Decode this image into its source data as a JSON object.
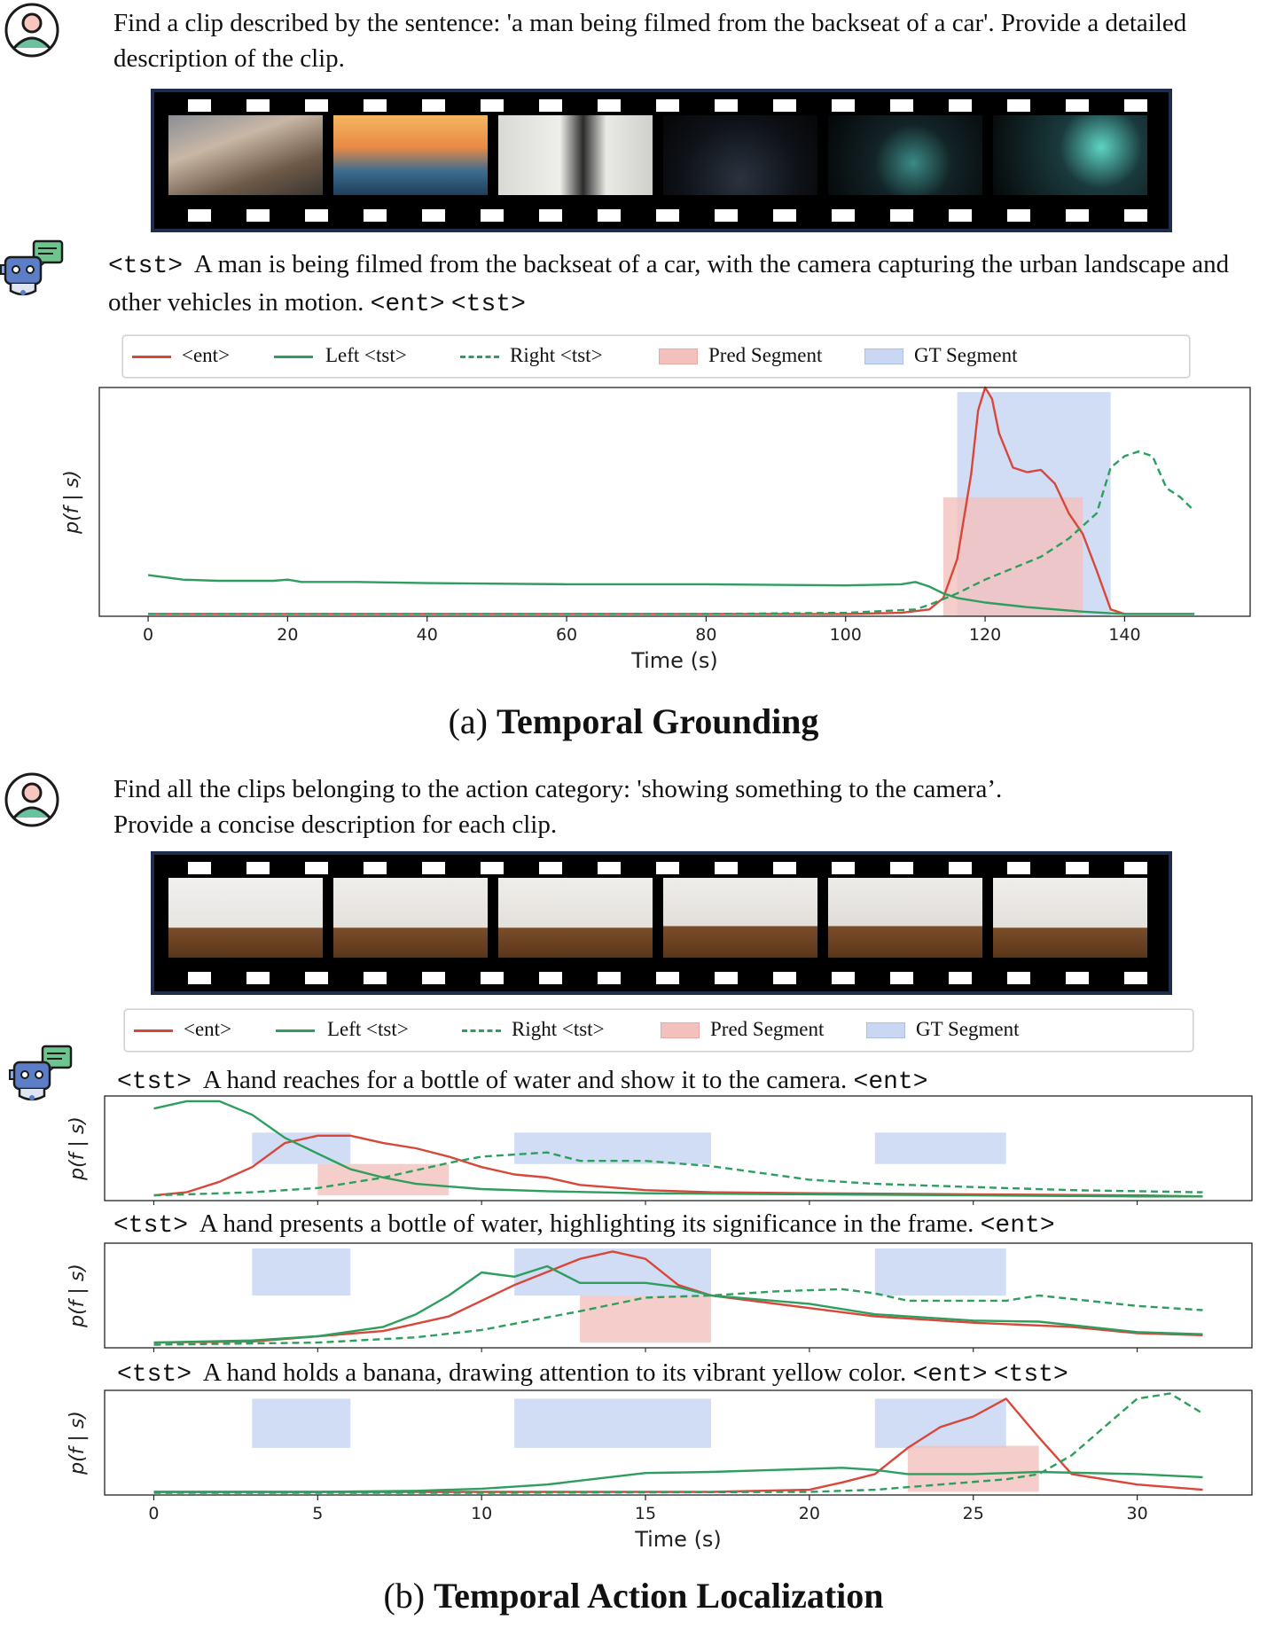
{
  "section_a": {
    "user_prompt": "Find a clip described by the sentence: 'a man being filmed from the backseat of a car'. Provide a detailed description of the clip.",
    "reply": {
      "tag_start": "<tst>",
      "text": "A man is being filmed from the backseat of a car, with the camera capturing the urban landscape and other vehicles in motion.",
      "tag_end": "<ent>",
      "tag_next": "<tst>"
    },
    "caption_prefix": "(a)",
    "caption_bold": "Temporal Grounding"
  },
  "section_b": {
    "user_prompt_line1": "Find all the clips belonging to the action category: 'showing something to the camera’.",
    "user_prompt_line2": "Provide a concise description for each clip.",
    "caption_prefix": "(b)",
    "caption_bold": "Temporal Action Localization",
    "rows": [
      {
        "tag_start": "<tst>",
        "text": "A hand reaches for a bottle of water and show it to the camera.",
        "tag_end": "<ent>",
        "tag_next": ""
      },
      {
        "tag_start": "<tst>",
        "text": "A hand presents a bottle of water, highlighting its significance in the frame.",
        "tag_end": "<ent>",
        "tag_next": ""
      },
      {
        "tag_start": "<tst>",
        "text": "A hand holds a banana, drawing attention to its vibrant yellow color.",
        "tag_end": "<ent>",
        "tag_next": "<tst>"
      }
    ]
  },
  "legend": {
    "ent": "<ent>",
    "left": "Left <tst>",
    "right": "Right <tst>",
    "pred": "Pred Segment",
    "gt": "GT Segment"
  },
  "colors": {
    "ent": "#d9473a",
    "tst": "#2e9e5e",
    "pred_fill": "#f2c0bd",
    "gt_fill": "#c9d7f3",
    "film": "#000000",
    "film_border": "#1f2d4d"
  },
  "icons": [
    "user-avatar-icon",
    "robot-assistant-icon",
    "film-strip-icon"
  ],
  "chart_data": [
    {
      "type": "line",
      "ylabel": "p(f | s)",
      "xlabel": "Time (s)",
      "xlim": [
        -7,
        158
      ],
      "ylim": [
        0,
        1
      ],
      "xticks": [
        0,
        20,
        40,
        60,
        80,
        100,
        120,
        140
      ],
      "gt_segments": [
        [
          116,
          138
        ]
      ],
      "pred_segments": [
        [
          114,
          134
        ]
      ],
      "gt_segment_height": [
        0.0,
        0.98
      ],
      "pred_segment_height": [
        0.0,
        0.52
      ],
      "series": [
        {
          "name": "<ent>",
          "style": "solid",
          "color": "#d9473a",
          "x": [
            0,
            20,
            40,
            60,
            80,
            100,
            108,
            112,
            114,
            116,
            118,
            119,
            120,
            121,
            122,
            124,
            126,
            128,
            130,
            132,
            134,
            136,
            138,
            140,
            150
          ],
          "y": [
            0.01,
            0.01,
            0.01,
            0.01,
            0.01,
            0.01,
            0.015,
            0.03,
            0.08,
            0.25,
            0.62,
            0.9,
            1.0,
            0.95,
            0.8,
            0.65,
            0.63,
            0.64,
            0.58,
            0.45,
            0.36,
            0.2,
            0.03,
            0.01,
            0.01
          ]
        },
        {
          "name": "Left <tst>",
          "style": "solid",
          "color": "#2e9e5e",
          "x": [
            0,
            5,
            10,
            18,
            20,
            22,
            30,
            40,
            60,
            80,
            100,
            108,
            110,
            112,
            114,
            116,
            120,
            126,
            134,
            140,
            150
          ],
          "y": [
            0.18,
            0.16,
            0.155,
            0.155,
            0.16,
            0.15,
            0.15,
            0.145,
            0.14,
            0.14,
            0.135,
            0.14,
            0.15,
            0.13,
            0.1,
            0.08,
            0.06,
            0.04,
            0.02,
            0.01,
            0.01
          ]
        },
        {
          "name": "Right <tst>",
          "style": "dashed",
          "color": "#2e9e5e",
          "x": [
            0,
            20,
            40,
            60,
            80,
            100,
            110,
            112,
            116,
            120,
            124,
            128,
            132,
            136,
            138,
            140,
            142,
            144,
            146,
            148,
            150
          ],
          "y": [
            0.01,
            0.01,
            0.01,
            0.01,
            0.01,
            0.015,
            0.03,
            0.05,
            0.1,
            0.16,
            0.21,
            0.26,
            0.34,
            0.45,
            0.65,
            0.7,
            0.72,
            0.7,
            0.56,
            0.52,
            0.46
          ]
        }
      ]
    },
    {
      "type": "line",
      "ylabel": "p(f | s)",
      "xlim": [
        -1.5,
        33.5
      ],
      "ylim": [
        0,
        1
      ],
      "gt_segments": [
        [
          3,
          6
        ],
        [
          11,
          17
        ],
        [
          22,
          26
        ]
      ],
      "pred_segments": [
        [
          5,
          9
        ]
      ],
      "gt_segment_height": [
        0.35,
        0.65
      ],
      "pred_segment_height": [
        0.05,
        0.35
      ],
      "series": [
        {
          "name": "<ent>",
          "style": "solid",
          "color": "#d9473a",
          "x": [
            0,
            1,
            2,
            3,
            4,
            5,
            6,
            7,
            8,
            9,
            10,
            11,
            12,
            13,
            15,
            17,
            20,
            25,
            30,
            32
          ],
          "y": [
            0.05,
            0.08,
            0.18,
            0.32,
            0.55,
            0.62,
            0.62,
            0.55,
            0.5,
            0.42,
            0.32,
            0.25,
            0.22,
            0.15,
            0.1,
            0.08,
            0.07,
            0.06,
            0.05,
            0.04
          ]
        },
        {
          "name": "Left <tst>",
          "style": "solid",
          "color": "#2e9e5e",
          "x": [
            0,
            1,
            2,
            3,
            4,
            5,
            6,
            7,
            8,
            10,
            12,
            15,
            20,
            25,
            30,
            32
          ],
          "y": [
            0.88,
            0.95,
            0.95,
            0.82,
            0.6,
            0.45,
            0.3,
            0.22,
            0.16,
            0.11,
            0.09,
            0.07,
            0.06,
            0.05,
            0.04,
            0.04
          ]
        },
        {
          "name": "Right <tst>",
          "style": "dashed",
          "color": "#2e9e5e",
          "x": [
            0,
            3,
            5,
            7,
            9,
            10,
            12,
            13,
            15,
            17,
            20,
            22,
            25,
            28,
            32
          ],
          "y": [
            0.05,
            0.08,
            0.12,
            0.22,
            0.36,
            0.42,
            0.46,
            0.38,
            0.38,
            0.33,
            0.2,
            0.16,
            0.13,
            0.1,
            0.08
          ]
        }
      ]
    },
    {
      "type": "line",
      "ylabel": "p(f | s)",
      "xlim": [
        -1.5,
        33.5
      ],
      "ylim": [
        0,
        1
      ],
      "gt_segments": [
        [
          3,
          6
        ],
        [
          11,
          17
        ],
        [
          22,
          26
        ]
      ],
      "pred_segments": [
        [
          13,
          17
        ]
      ],
      "gt_segment_height": [
        0.5,
        0.95
      ],
      "pred_segment_height": [
        0.05,
        0.5
      ],
      "series": [
        {
          "name": "<ent>",
          "style": "solid",
          "color": "#d9473a",
          "x": [
            0,
            3,
            5,
            7,
            9,
            10,
            11,
            13,
            14,
            15,
            16,
            17,
            20,
            22,
            25,
            28,
            30,
            32
          ],
          "y": [
            0.05,
            0.06,
            0.11,
            0.16,
            0.3,
            0.45,
            0.6,
            0.85,
            0.92,
            0.85,
            0.6,
            0.5,
            0.38,
            0.3,
            0.24,
            0.2,
            0.14,
            0.12
          ]
        },
        {
          "name": "Left <tst>",
          "style": "solid",
          "color": "#2e9e5e",
          "x": [
            0,
            3,
            5,
            7,
            8,
            9,
            10,
            11,
            12,
            13,
            15,
            16,
            17,
            20,
            22,
            25,
            27,
            30,
            32
          ],
          "y": [
            0.05,
            0.07,
            0.11,
            0.2,
            0.32,
            0.5,
            0.72,
            0.68,
            0.78,
            0.62,
            0.62,
            0.58,
            0.5,
            0.42,
            0.32,
            0.26,
            0.25,
            0.15,
            0.13
          ]
        },
        {
          "name": "Right <tst>",
          "style": "dashed",
          "color": "#2e9e5e",
          "x": [
            0,
            5,
            8,
            10,
            13,
            15,
            17,
            19,
            21,
            22,
            23,
            26,
            27,
            30,
            32
          ],
          "y": [
            0.03,
            0.05,
            0.1,
            0.17,
            0.35,
            0.48,
            0.5,
            0.54,
            0.56,
            0.52,
            0.45,
            0.45,
            0.5,
            0.4,
            0.36
          ]
        }
      ]
    },
    {
      "type": "line",
      "ylabel": "p(f | s)",
      "xlabel": "Time (s)",
      "xlim": [
        -1.5,
        33.5
      ],
      "ylim": [
        0,
        1
      ],
      "xticks": [
        0,
        5,
        10,
        15,
        20,
        25,
        30
      ],
      "gt_segments": [
        [
          3,
          6
        ],
        [
          11,
          17
        ],
        [
          22,
          26
        ]
      ],
      "pred_segments": [
        [
          23,
          27
        ]
      ],
      "gt_segment_height": [
        0.45,
        0.92
      ],
      "pred_segment_height": [
        0.03,
        0.47
      ],
      "series": [
        {
          "name": "<ent>",
          "style": "solid",
          "color": "#d9473a",
          "x": [
            0,
            10,
            17,
            20,
            21,
            22,
            23,
            24,
            25,
            26,
            27,
            28,
            30,
            32
          ],
          "y": [
            0.03,
            0.03,
            0.03,
            0.05,
            0.12,
            0.2,
            0.45,
            0.65,
            0.75,
            0.92,
            0.55,
            0.2,
            0.1,
            0.05
          ]
        },
        {
          "name": "Left <tst>",
          "style": "solid",
          "color": "#2e9e5e",
          "x": [
            0,
            5,
            8,
            10,
            12,
            15,
            17,
            19,
            21,
            22,
            23,
            25,
            27,
            30,
            32
          ],
          "y": [
            0.03,
            0.03,
            0.04,
            0.06,
            0.1,
            0.21,
            0.22,
            0.24,
            0.26,
            0.24,
            0.2,
            0.2,
            0.22,
            0.2,
            0.17
          ]
        },
        {
          "name": "Right <tst>",
          "style": "dashed",
          "color": "#2e9e5e",
          "x": [
            0,
            10,
            20,
            22,
            24,
            26,
            27,
            28,
            29,
            30,
            31,
            32
          ],
          "y": [
            0.02,
            0.02,
            0.03,
            0.05,
            0.1,
            0.15,
            0.2,
            0.38,
            0.65,
            0.92,
            0.97,
            0.78
          ]
        }
      ]
    }
  ]
}
